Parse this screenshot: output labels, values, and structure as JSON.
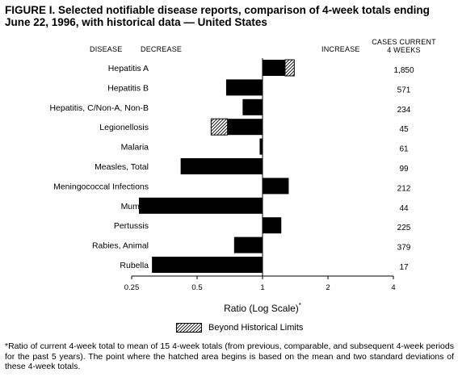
{
  "title": "FIGURE I. Selected notifiable disease reports, comparison of 4-week totals ending June 22, 1996, with historical data — United States",
  "headers": {
    "disease": "DISEASE",
    "decrease": "DECREASE",
    "increase": "INCREASE",
    "cases_line1": "CASES CURRENT",
    "cases_line2": "4 WEEKS"
  },
  "xlabel": "Ratio (Log Scale)",
  "xlabel_marker": "*",
  "legend_label": "Beyond Historical Limits",
  "footnote": "*Ratio of current 4-week total to mean of 15 4-week totals (from previous, comparable, and subsequent 4-week periods for the past 5 years). The point where the hatched area begins is based on the mean and two standard deviations of these 4-week totals.",
  "colors": {
    "bar": "#000000",
    "hatch": "#000000",
    "background": "#ffffff"
  },
  "chart_data": {
    "type": "bar",
    "orientation": "horizontal",
    "x_scale": "log",
    "baseline": 1,
    "xlim": [
      0.25,
      4
    ],
    "xticks": [
      0.25,
      0.5,
      1,
      2,
      4
    ],
    "xtick_labels": [
      "0.25",
      "0.5",
      "1",
      "2",
      "4"
    ],
    "categories": [
      "Hepatitis A",
      "Hepatitis B",
      "Hepatitis, C/Non-A, Non-B",
      "Legionellosis",
      "Malaria",
      "Measles, Total",
      "Meningococcal Infections",
      "Mumps",
      "Pertussis",
      "Rabies, Animal",
      "Rubella"
    ],
    "ratios": [
      1.4,
      0.68,
      0.81,
      0.58,
      0.97,
      0.42,
      1.32,
      0.27,
      1.22,
      0.74,
      0.31
    ],
    "hatch_start": [
      1.27,
      null,
      null,
      0.69,
      null,
      null,
      null,
      null,
      null,
      null,
      null
    ],
    "cases_current_4_weeks": [
      "1,850",
      "571",
      "234",
      "45",
      "61",
      "99",
      "212",
      "44",
      "225",
      "379",
      "17"
    ]
  }
}
